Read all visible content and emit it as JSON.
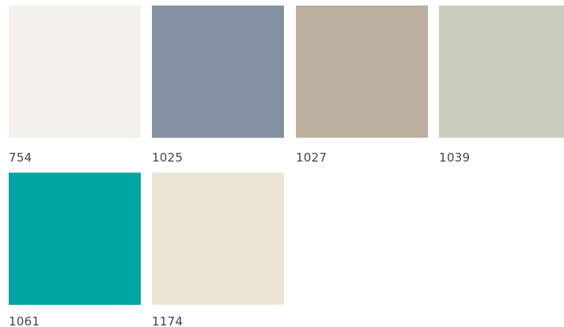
{
  "swatches": [
    {
      "code": "754",
      "color": "#f4f0eb"
    },
    {
      "code": "1025",
      "color": "#8491a1"
    },
    {
      "code": "1027",
      "color": "#bdb0a0"
    },
    {
      "code": "1039",
      "color": "#cacdbe"
    },
    {
      "code": "1061",
      "color": "#00a5a2"
    },
    {
      "code": "1174",
      "color": "#ede5d5"
    }
  ]
}
